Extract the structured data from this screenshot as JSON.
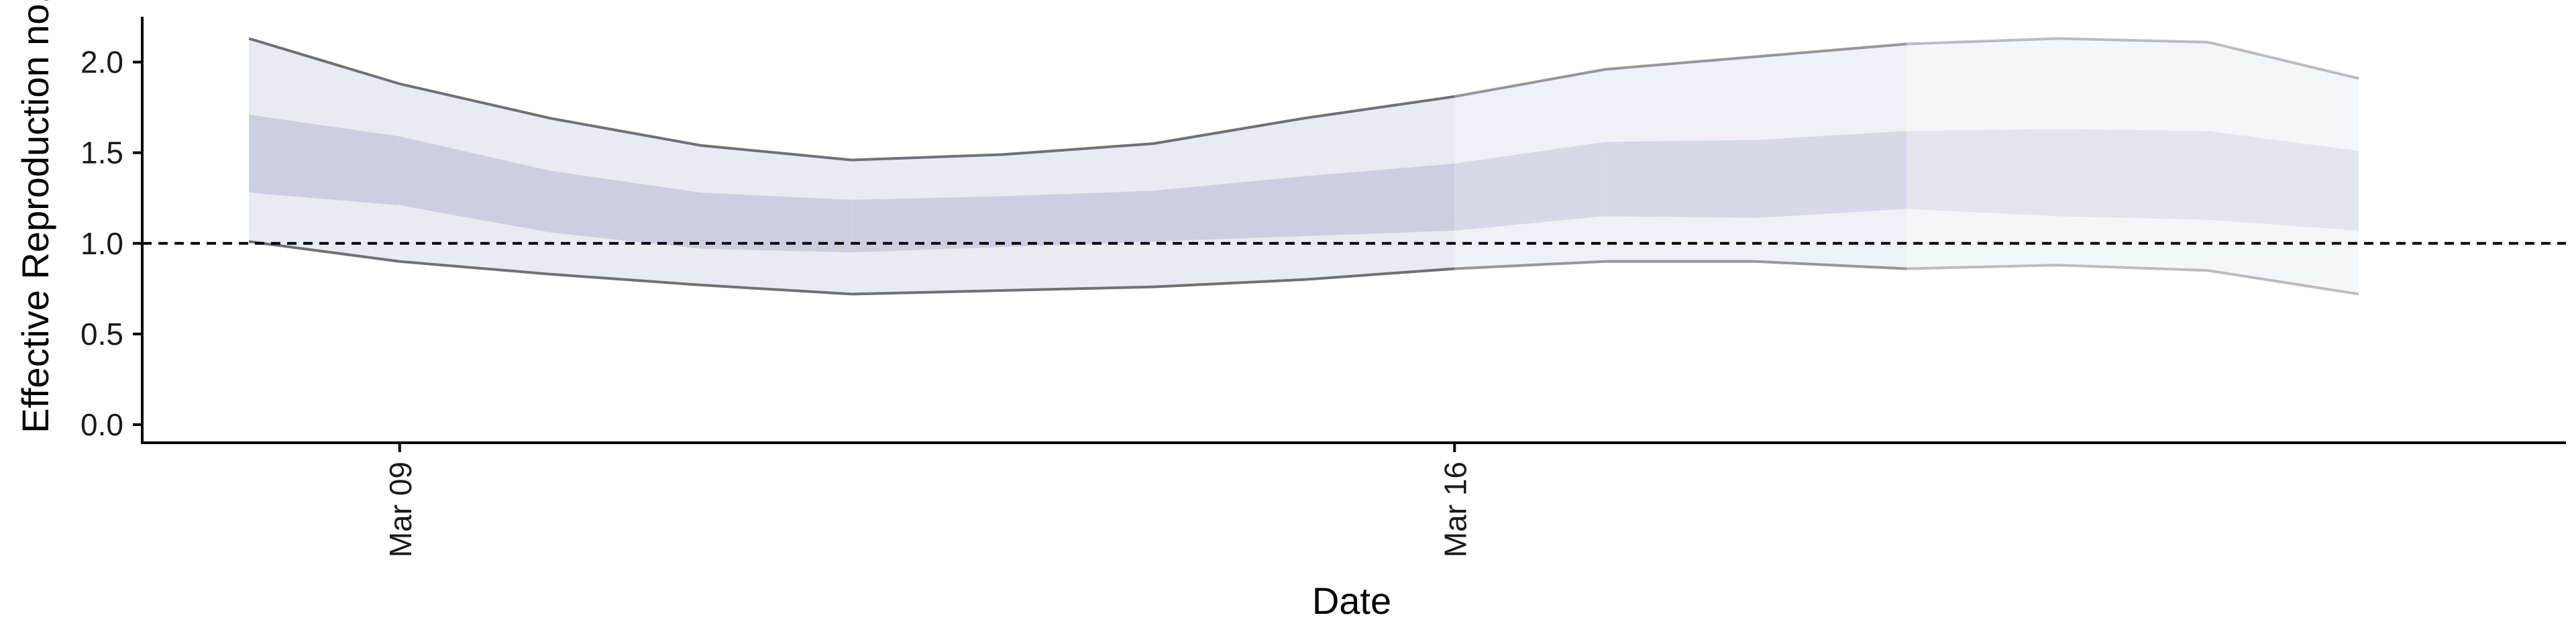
{
  "chart_data": {
    "type": "area",
    "xlabel": "Date",
    "ylabel": "Effective Reproduction no.",
    "x_tick_labels": [
      "Mar 09",
      "Mar 16"
    ],
    "x_tick_dates": [
      "2020-03-09",
      "2020-03-16"
    ],
    "y_ticks": [
      0.0,
      0.5,
      1.0,
      1.5,
      2.0
    ],
    "y_tick_labels": [
      "0.0",
      "0.5",
      "1.0",
      "1.5",
      "2.0"
    ],
    "ylim": [
      -0.1,
      2.25
    ],
    "xlim": [
      "2020-03-07T07:00",
      "2020-03-23T09:00"
    ],
    "reference_line": 1.0,
    "dates": [
      "2020-03-08",
      "2020-03-09",
      "2020-03-10",
      "2020-03-11",
      "2020-03-12",
      "2020-03-13",
      "2020-03-14",
      "2020-03-15",
      "2020-03-16",
      "2020-03-17",
      "2020-03-18",
      "2020-03-19",
      "2020-03-20",
      "2020-03-21",
      "2020-03-22"
    ],
    "upper_90": [
      2.13,
      1.88,
      1.69,
      1.54,
      1.46,
      1.49,
      1.55,
      1.69,
      1.81,
      1.96,
      2.03,
      2.1,
      2.13,
      2.11,
      1.91
    ],
    "upper_50": [
      1.71,
      1.59,
      1.4,
      1.28,
      1.24,
      1.26,
      1.29,
      1.37,
      1.44,
      1.56,
      1.57,
      1.62,
      1.63,
      1.62,
      1.51
    ],
    "lower_50": [
      1.28,
      1.21,
      1.06,
      0.97,
      0.95,
      0.98,
      1.01,
      1.04,
      1.07,
      1.15,
      1.14,
      1.19,
      1.15,
      1.13,
      1.07
    ],
    "lower_90": [
      1.01,
      0.9,
      0.83,
      0.77,
      0.72,
      0.74,
      0.76,
      0.8,
      0.86,
      0.9,
      0.9,
      0.86,
      0.88,
      0.85,
      0.72
    ],
    "band_colors": {
      "outer": "#e9ebf2",
      "inner": "#c9ccdd",
      "line": "#707075"
    },
    "estimate_type_shading": [
      "estimate",
      "estimate",
      "estimate",
      "estimate",
      "estimate",
      "estimate",
      "estimate",
      "estimate",
      "estimate",
      "estimate based on partial data",
      "estimate based on partial data",
      "estimate based on partial data",
      "forecast",
      "forecast",
      "forecast"
    ],
    "legend": "none",
    "grid": false
  }
}
